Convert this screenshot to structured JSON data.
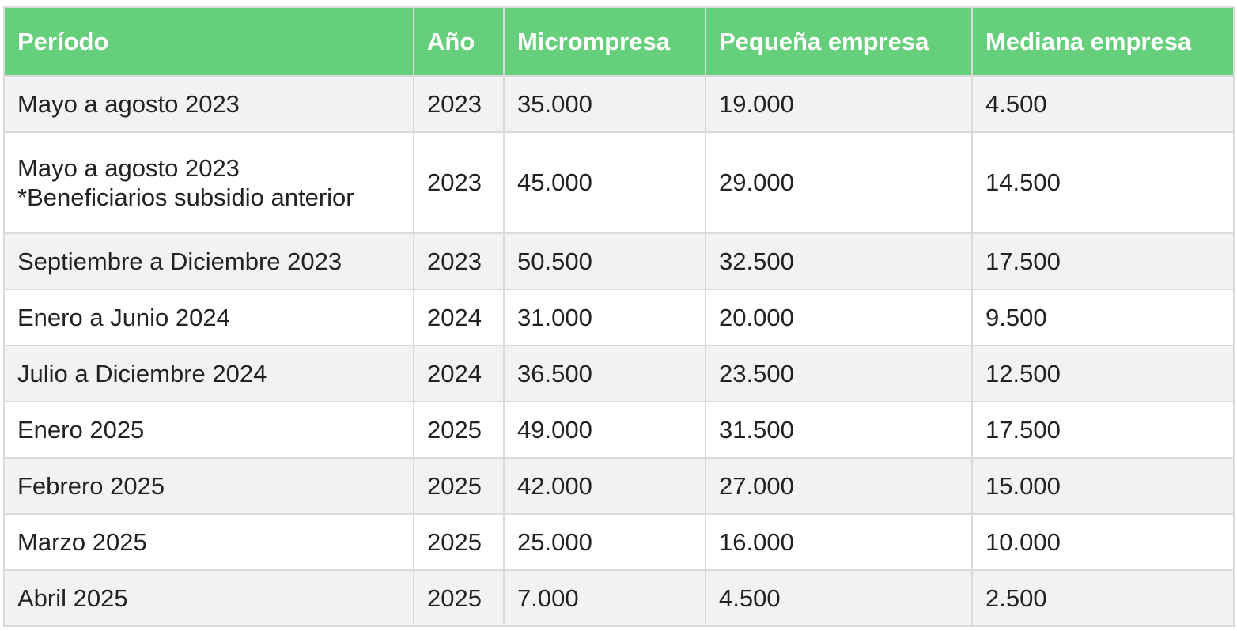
{
  "table": {
    "headers": [
      "Período",
      "Año",
      "Micrompresa",
      "Pequeña empresa",
      "Mediana empresa"
    ],
    "rows": [
      {
        "periodo": [
          "Mayo a agosto 2023"
        ],
        "anio": "2023",
        "micro": "35.000",
        "pequena": "19.000",
        "mediana": "4.500"
      },
      {
        "periodo": [
          "Mayo a agosto 2023",
          "*Beneficiarios subsidio anterior"
        ],
        "anio": "2023",
        "micro": "45.000",
        "pequena": "29.000",
        "mediana": "14.500"
      },
      {
        "periodo": [
          "Septiembre a Diciembre 2023"
        ],
        "anio": "2023",
        "micro": "50.500",
        "pequena": "32.500",
        "mediana": "17.500"
      },
      {
        "periodo": [
          "Enero a Junio 2024"
        ],
        "anio": "2024",
        "micro": "31.000",
        "pequena": "20.000",
        "mediana": "9.500"
      },
      {
        "periodo": [
          "Julio a Diciembre 2024"
        ],
        "anio": "2024",
        "micro": "36.500",
        "pequena": "23.500",
        "mediana": "12.500"
      },
      {
        "periodo": [
          "Enero 2025"
        ],
        "anio": "2025",
        "micro": "49.000",
        "pequena": "31.500",
        "mediana": "17.500"
      },
      {
        "periodo": [
          "Febrero 2025"
        ],
        "anio": "2025",
        "micro": "42.000",
        "pequena": "27.000",
        "mediana": "15.000"
      },
      {
        "periodo": [
          "Marzo 2025"
        ],
        "anio": "2025",
        "micro": "25.000",
        "pequena": "16.000",
        "mediana": "10.000"
      },
      {
        "periodo": [
          "Abril 2025"
        ],
        "anio": "2025",
        "micro": "7.000",
        "pequena": "4.500",
        "mediana": "2.500"
      }
    ]
  },
  "colors": {
    "header_bg": "#66cf7b",
    "header_text": "#ffffff",
    "row_shade": "#f2f2f2",
    "row_plain": "#ffffff",
    "border": "#dadada",
    "text": "#222222"
  }
}
